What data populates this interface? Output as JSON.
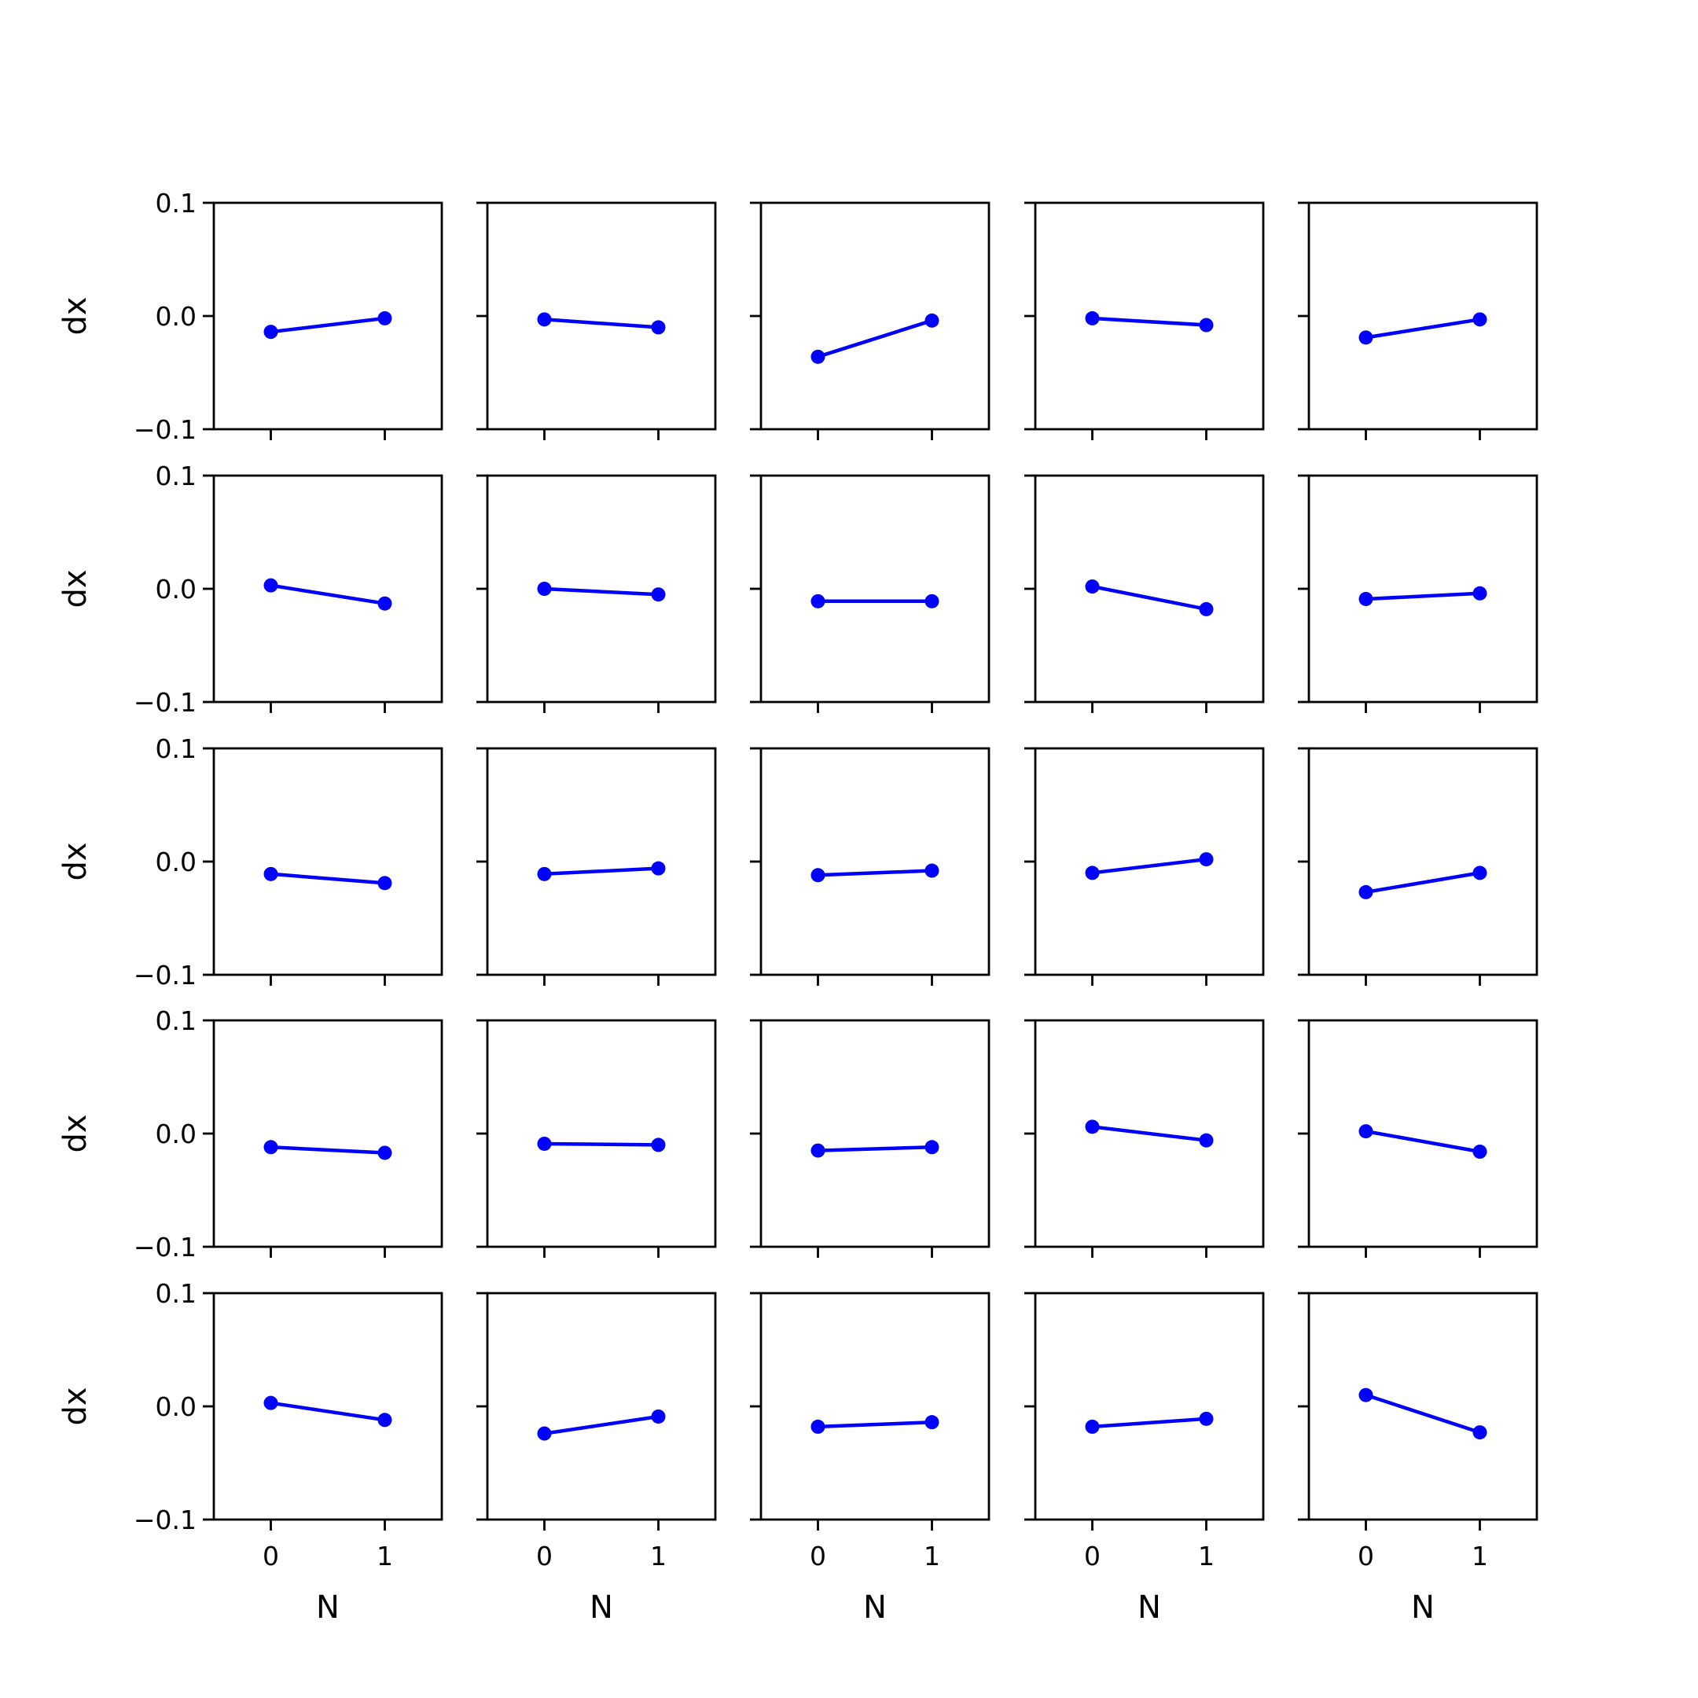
{
  "chart_data": {
    "type": "line",
    "layout": "5x5 grid of small multiples, shared axes",
    "rows": 5,
    "cols": 5,
    "xlabel": "N",
    "ylabel": "dx",
    "xlim": [
      -0.5,
      1.5
    ],
    "ylim": [
      -0.1,
      0.1
    ],
    "xticks": [
      0,
      1
    ],
    "xtick_labels": [
      "0",
      "1"
    ],
    "yticks": [
      0.1,
      0.0,
      -0.1
    ],
    "ytick_labels": [
      "0.1",
      "0.0",
      "−0.1"
    ],
    "line_color": "#0000ff",
    "marker": "circle",
    "grid": false,
    "x": [
      0,
      1
    ],
    "panels": [
      [
        [
          -0.014,
          -0.002
        ],
        [
          -0.003,
          -0.01
        ],
        [
          -0.036,
          -0.004
        ],
        [
          -0.002,
          -0.008
        ],
        [
          -0.019,
          -0.003
        ]
      ],
      [
        [
          0.003,
          -0.013
        ],
        [
          0.0,
          -0.005
        ],
        [
          -0.011,
          -0.011
        ],
        [
          0.002,
          -0.018
        ],
        [
          -0.009,
          -0.004
        ]
      ],
      [
        [
          -0.011,
          -0.019
        ],
        [
          -0.011,
          -0.006
        ],
        [
          -0.012,
          -0.008
        ],
        [
          -0.01,
          0.002
        ],
        [
          -0.027,
          -0.01
        ]
      ],
      [
        [
          -0.012,
          -0.017
        ],
        [
          -0.009,
          -0.01
        ],
        [
          -0.015,
          -0.012
        ],
        [
          0.006,
          -0.006
        ],
        [
          0.002,
          -0.016
        ]
      ],
      [
        [
          0.003,
          -0.012
        ],
        [
          -0.024,
          -0.009
        ],
        [
          -0.018,
          -0.014
        ],
        [
          -0.018,
          -0.011
        ],
        [
          0.01,
          -0.023
        ]
      ]
    ]
  }
}
